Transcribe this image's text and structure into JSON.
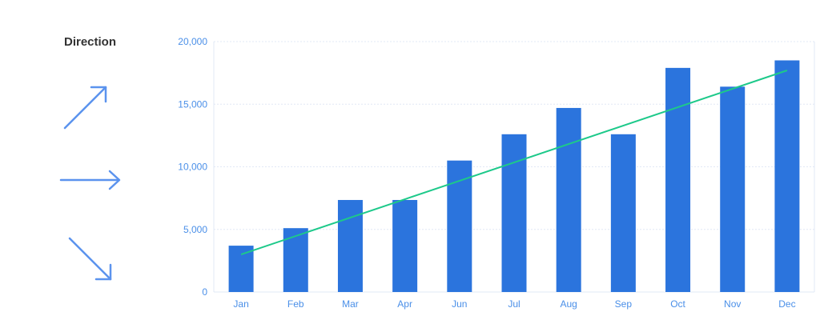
{
  "sidebar": {
    "title": "Direction",
    "arrows": [
      {
        "icon": "arrow-up-right-icon"
      },
      {
        "icon": "arrow-right-icon"
      },
      {
        "icon": "arrow-down-right-icon"
      }
    ],
    "arrow_color": "#5b93ee"
  },
  "colors": {
    "bar": "#2b74dd",
    "trend": "#1dc98a",
    "tick_text": "#4a8fe8",
    "grid": "#e1e8f5"
  },
  "chart_data": {
    "type": "bar",
    "categories": [
      "Jan",
      "Feb",
      "Mar",
      "Apr",
      "Jun",
      "Jul",
      "Aug",
      "Sep",
      "Oct",
      "Nov",
      "Dec"
    ],
    "values": [
      3700,
      5100,
      7350,
      7350,
      10500,
      12600,
      14700,
      12600,
      17900,
      16400,
      18500
    ],
    "trendline": {
      "type": "line",
      "start": 3000,
      "end": 17700
    },
    "yticks": [
      0,
      5000,
      10000,
      15000,
      20000
    ],
    "ytick_labels": [
      "0",
      "5,000",
      "10,000",
      "15,000",
      "20,000"
    ],
    "ylim": [
      0,
      20000
    ],
    "title": "",
    "xlabel": "",
    "ylabel": "",
    "grid": true
  }
}
